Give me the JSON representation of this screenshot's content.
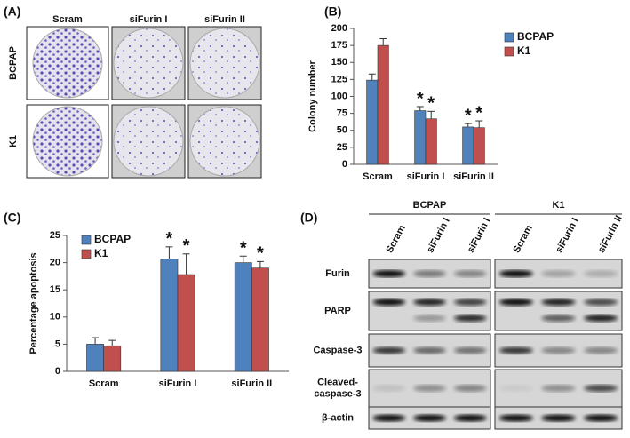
{
  "panel_a": {
    "label": "(A)",
    "columns": [
      "Scram",
      "siFurin I",
      "siFurin II"
    ],
    "rows": [
      "BCPAP",
      "K1"
    ]
  },
  "chart_data": [
    {
      "type": "bar",
      "panel_label": "(B)",
      "ylabel": "Colony number",
      "categories": [
        "Scram",
        "siFurin I",
        "siFurin II"
      ],
      "series": [
        {
          "name": "BCPAP",
          "color": "#4f81bd",
          "values": [
            124,
            79,
            55
          ],
          "errors": [
            9,
            6,
            5
          ],
          "markers": [
            null,
            "*",
            "*"
          ]
        },
        {
          "name": "K1",
          "color": "#c0504d",
          "values": [
            175,
            67,
            54
          ],
          "errors": [
            10,
            11,
            10
          ],
          "markers": [
            null,
            "*",
            "*"
          ]
        }
      ],
      "ylim": [
        0,
        200
      ],
      "yticks": [
        0,
        25,
        50,
        75,
        100,
        125,
        150,
        175,
        200
      ],
      "legend": "upper right"
    },
    {
      "type": "bar",
      "panel_label": "(C)",
      "ylabel": "Percentage apoptosis",
      "categories": [
        "Scram",
        "siFurin I",
        "siFurin II"
      ],
      "series": [
        {
          "name": "BCPAP",
          "color": "#4f81bd",
          "values": [
            5.0,
            20.7,
            20.0
          ],
          "errors": [
            1.2,
            2.2,
            1.2
          ],
          "markers": [
            null,
            "*",
            "*"
          ]
        },
        {
          "name": "K1",
          "color": "#c0504d",
          "values": [
            4.7,
            17.8,
            19.0
          ],
          "errors": [
            1.0,
            3.8,
            1.2
          ],
          "markers": [
            null,
            "*",
            "*"
          ]
        }
      ],
      "ylim": [
        0,
        25
      ],
      "yticks": [
        0,
        5,
        10,
        15,
        20,
        25
      ],
      "legend": "upper left"
    }
  ],
  "panel_d": {
    "label": "(D)",
    "groups": [
      {
        "name": "BCPAP",
        "lanes": [
          "Scram",
          "siFurin I",
          "siFurin I"
        ]
      },
      {
        "name": "K1",
        "lanes": [
          "Scram",
          "siFurin I",
          "siFurin II"
        ]
      }
    ],
    "rows": [
      [
        "Furin"
      ],
      [
        "PARP"
      ],
      [
        "Caspase-3"
      ],
      [
        "Cleaved-",
        "caspase-3"
      ],
      [
        "β-actin"
      ]
    ]
  }
}
